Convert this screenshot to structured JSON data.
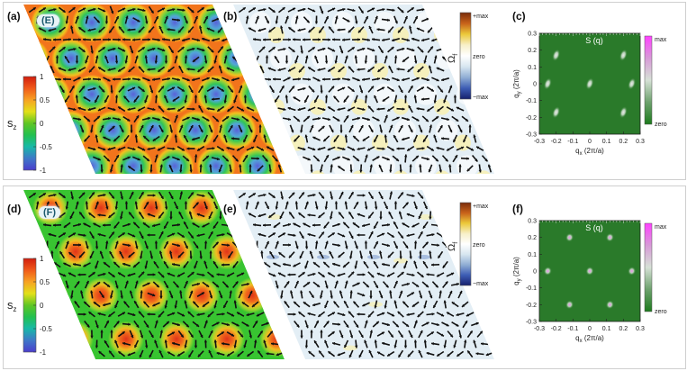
{
  "rows": [
    {
      "labels": {
        "a": "(a)",
        "b": "(b)",
        "c": "(c)"
      },
      "phase": "(E)",
      "type": "E",
      "sz_cbar": {
        "symbol": "s",
        "sub": "z",
        "ticks": [
          "1",
          "0.5",
          "0",
          "-0.5",
          "-1"
        ]
      },
      "omega_cbar": {
        "symbol": "Ω",
        "sub": "f",
        "top": "+max",
        "mid": "zero",
        "bottom": "−max"
      },
      "sq": {
        "title": "S (q)",
        "x_ticks": [
          "-0.3",
          "-0.2",
          "-0.1",
          "0",
          "0.1",
          "0.2",
          "0.3"
        ],
        "y_ticks": [
          "0.3",
          "0.2",
          "0.1",
          "0",
          "-0.1",
          "-0.2",
          "-0.3"
        ],
        "xlabel_main": "q",
        "xlabel_sub": "x",
        "xlabel_unit": " (2π/a)",
        "ylabel_main": "q",
        "ylabel_sub": "y",
        "ylabel_unit": " (2π/a)",
        "cbar_top": "max",
        "cbar_bottom": "zero"
      }
    },
    {
      "labels": {
        "a": "(d)",
        "b": "(e)",
        "c": "(f)"
      },
      "phase": "(F)",
      "type": "F",
      "sz_cbar": {
        "symbol": "s",
        "sub": "z",
        "ticks": [
          "1",
          "0.5",
          "0",
          "-0.5",
          "-1"
        ]
      },
      "omega_cbar": {
        "symbol": "Ω",
        "sub": "f",
        "top": "+max",
        "mid": "zero",
        "bottom": "−max"
      },
      "sq": {
        "title": "S (q)",
        "x_ticks": [
          "-0.3",
          "-0.2",
          "-0.1",
          "0",
          "0.1",
          "0.2",
          "0.3"
        ],
        "y_ticks": [
          "0.3",
          "0.2",
          "0.1",
          "0",
          "-0.1",
          "-0.2",
          "-0.3"
        ],
        "xlabel_main": "q",
        "xlabel_sub": "x",
        "xlabel_unit": " (2π/a)",
        "ylabel_main": "q",
        "ylabel_sub": "y",
        "ylabel_unit": " (2π/a)",
        "cbar_top": "max",
        "cbar_bottom": "zero"
      }
    }
  ],
  "colors": {
    "sz_scale": [
      "#d21d0e",
      "#f05a1a",
      "#f7a223",
      "#e2e019",
      "#5fc624",
      "#23c050",
      "#18b9a8",
      "#3f78c8",
      "#4b3dcc"
    ],
    "omega_scale": [
      "#7a2c0b",
      "#c8621a",
      "#ecc93a",
      "#f7f0c8",
      "#ffffff",
      "#d7e6f0",
      "#90aed4",
      "#3d5db4",
      "#16206e"
    ],
    "sq_scale": [
      "#ff40ff",
      "#d79ad7",
      "#d6e1d6",
      "#6da16d",
      "#1c7a1c"
    ],
    "sq_background": "#2a7a2a",
    "arrow": "#111111"
  }
}
